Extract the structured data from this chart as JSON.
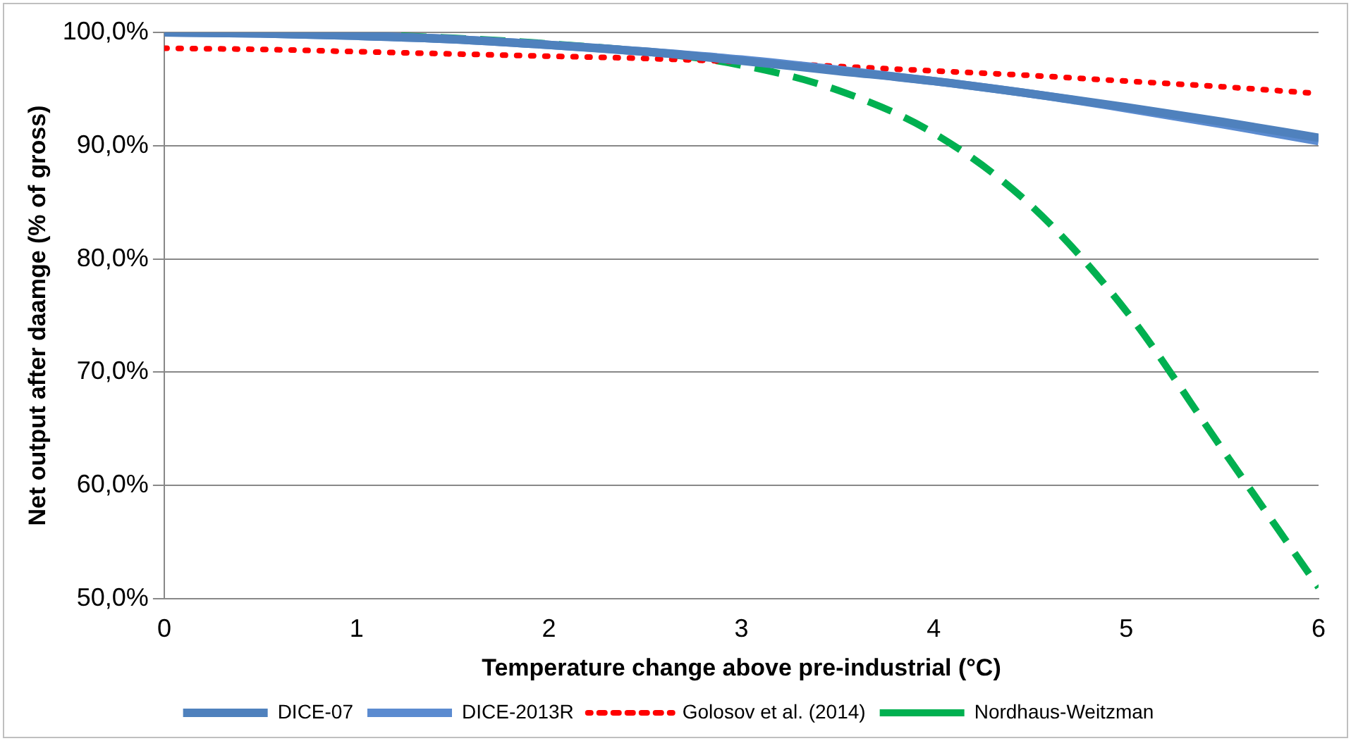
{
  "chart_data": {
    "type": "line",
    "xlabel": "Temperature change above pre-industrial (°C)",
    "ylabel": "Net output after daamge (% of gross)",
    "x": [
      0,
      0.5,
      1,
      1.5,
      2,
      2.5,
      3,
      3.5,
      4,
      4.5,
      5,
      5.5,
      6
    ],
    "series": [
      {
        "name": "DICE-07",
        "color": "#4f81bd",
        "line_style": "solid",
        "values": [
          100,
          99.9,
          99.7,
          99.4,
          98.9,
          98.3,
          97.5,
          96.6,
          95.7,
          94.6,
          93.4,
          92.1,
          90.7
        ]
      },
      {
        "name": "DICE-2013R",
        "color": "#5b8bd0",
        "line_style": "solid",
        "values": [
          100,
          99.9,
          99.7,
          99.4,
          98.9,
          98.3,
          97.6,
          96.7,
          95.7,
          94.6,
          93.3,
          91.9,
          90.4
        ]
      },
      {
        "name": "Golosov et al. (2014)",
        "color": "#ff0000",
        "line_style": "dotted",
        "values": [
          98.6,
          98.5,
          98.3,
          98.1,
          97.9,
          97.7,
          97.4,
          97.0,
          96.6,
          96.2,
          95.7,
          95.2,
          94.6
        ]
      },
      {
        "name": "Nordhaus-Weitzman",
        "color": "#00b050",
        "line_style": "dashed",
        "values": [
          100,
          99.9,
          99.8,
          99.5,
          99.0,
          98.3,
          97.1,
          94.9,
          91.1,
          84.8,
          75.4,
          63.2,
          51
        ]
      }
    ],
    "xlim": [
      0,
      6
    ],
    "xticks": [
      0,
      1,
      2,
      3,
      4,
      5,
      6
    ],
    "ylim": [
      50,
      100
    ],
    "yticks": [
      {
        "value": 50,
        "label": "50,0%"
      },
      {
        "value": 60,
        "label": "60,0%"
      },
      {
        "value": 70,
        "label": "70,0%"
      },
      {
        "value": 80,
        "label": "80,0%"
      },
      {
        "value": 90,
        "label": "90,0%"
      },
      {
        "value": 100,
        "label": "100,0%"
      }
    ],
    "grid": "y",
    "legend": "bottom",
    "marker": "none"
  }
}
